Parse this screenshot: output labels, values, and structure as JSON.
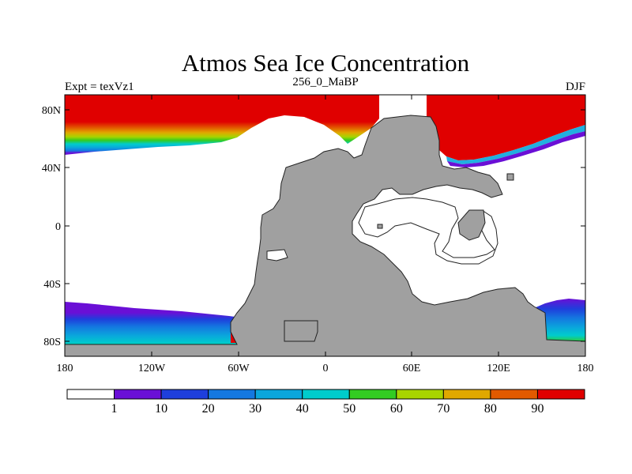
{
  "title": "Atmos Sea Ice Concentration",
  "left_string": "Expt = texVz1",
  "center_string": "256_0_MaBP",
  "right_string": "DJF",
  "y_ticks": [
    "80N",
    "40N",
    "0",
    "40S",
    "80S"
  ],
  "x_ticks": [
    "180",
    "120W",
    "60W",
    "0",
    "60E",
    "120E",
    "180"
  ],
  "colorbar": {
    "labels": [
      "1",
      "10",
      "20",
      "30",
      "40",
      "50",
      "60",
      "70",
      "80",
      "90"
    ],
    "colors": [
      "#ffffff",
      "#6a0fd6",
      "#1e3fdc",
      "#1478e0",
      "#0aa6dc",
      "#00cccc",
      "#33cc22",
      "#a8d400",
      "#e0a800",
      "#e25a00",
      "#e00000"
    ]
  },
  "colors": {
    "land": "#a0a0a0",
    "ice_max": "#e00000",
    "open_water": "#ffffff"
  }
}
